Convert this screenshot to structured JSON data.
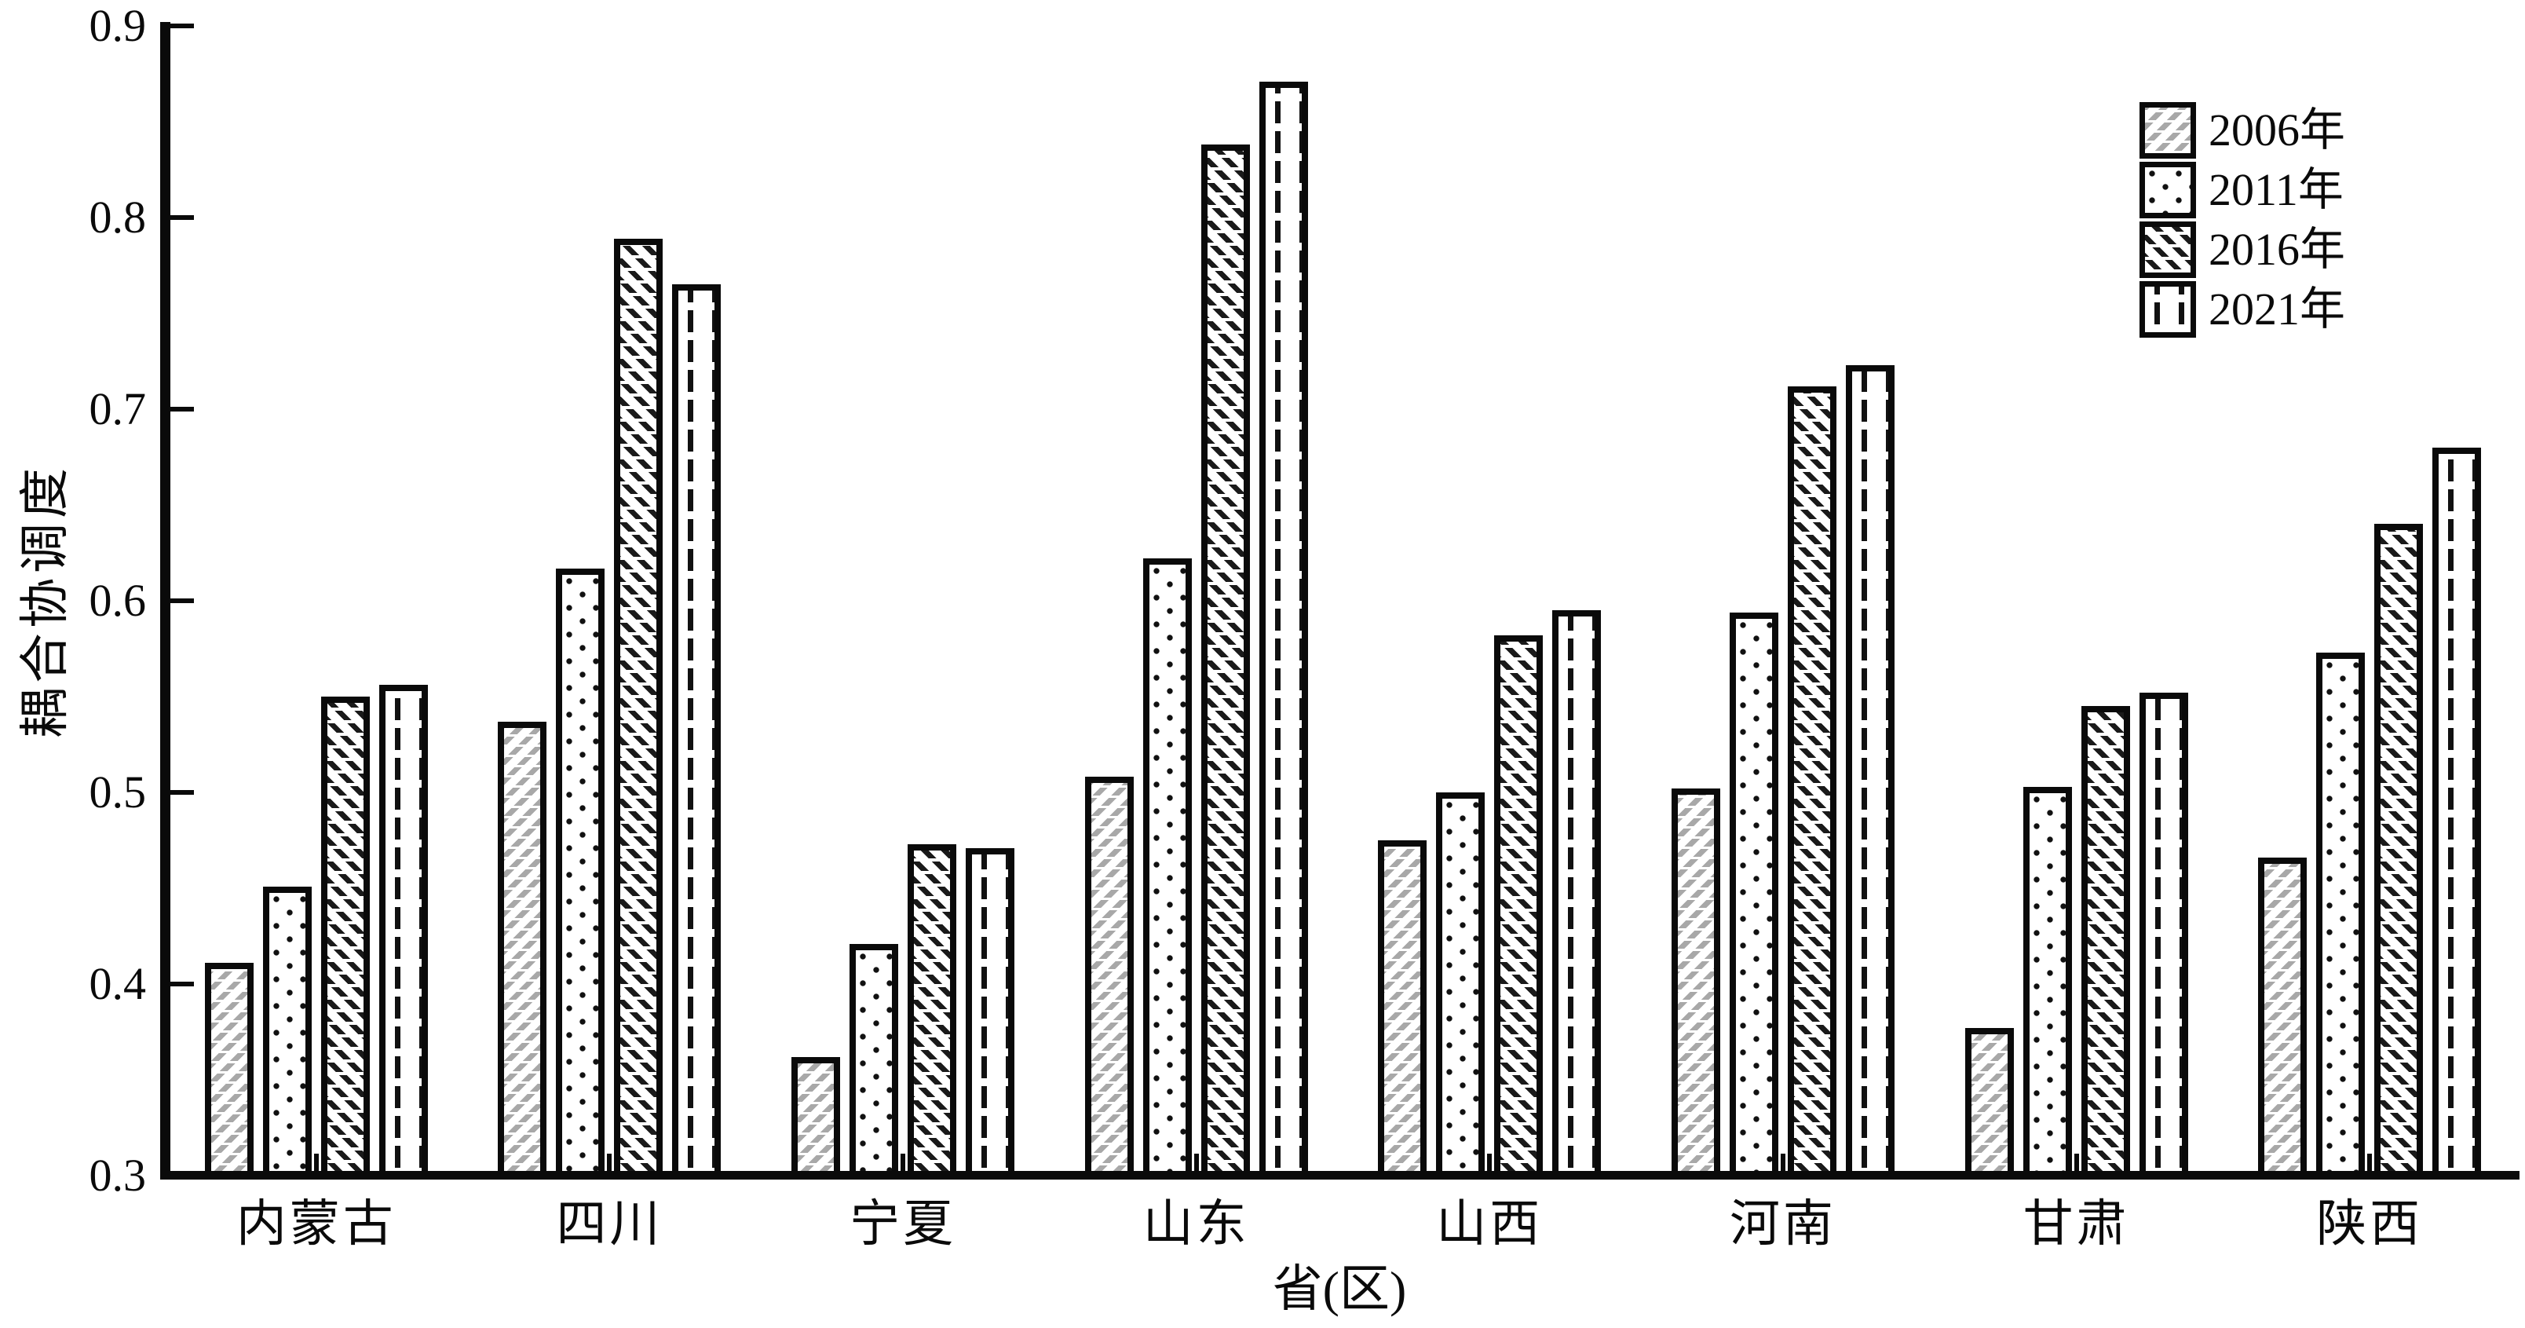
{
  "chart_data": {
    "type": "bar",
    "title": "",
    "xlabel": "省(区)",
    "ylabel": "耦合协调度",
    "ylim": [
      0.3,
      0.9
    ],
    "ytick_step": 0.1,
    "grid": "off",
    "legend_position": "upper-right",
    "bar_fill_color": "#ffffff",
    "axis_color": "#0a0a0a",
    "hatch_gray_color": "#a8a8a8",
    "categories": [
      "内蒙古",
      "四川",
      "宁夏",
      "山东",
      "山西",
      "河南",
      "甘肃",
      "陕西"
    ],
    "series": [
      {
        "name": "2006年",
        "pattern": "gray-backslash-hatch",
        "values": [
          0.411,
          0.537,
          0.362,
          0.508,
          0.475,
          0.502,
          0.377,
          0.466
        ]
      },
      {
        "name": "2011年",
        "pattern": "black-dots",
        "values": [
          0.451,
          0.617,
          0.421,
          0.622,
          0.5,
          0.594,
          0.503,
          0.573
        ]
      },
      {
        "name": "2016年",
        "pattern": "black-slash-dashed-hatch",
        "values": [
          0.55,
          0.789,
          0.473,
          0.838,
          0.582,
          0.712,
          0.545,
          0.64
        ]
      },
      {
        "name": "2021年",
        "pattern": "black-vertical-dashed",
        "values": [
          0.556,
          0.765,
          0.471,
          0.871,
          0.595,
          0.723,
          0.552,
          0.68
        ]
      }
    ]
  }
}
